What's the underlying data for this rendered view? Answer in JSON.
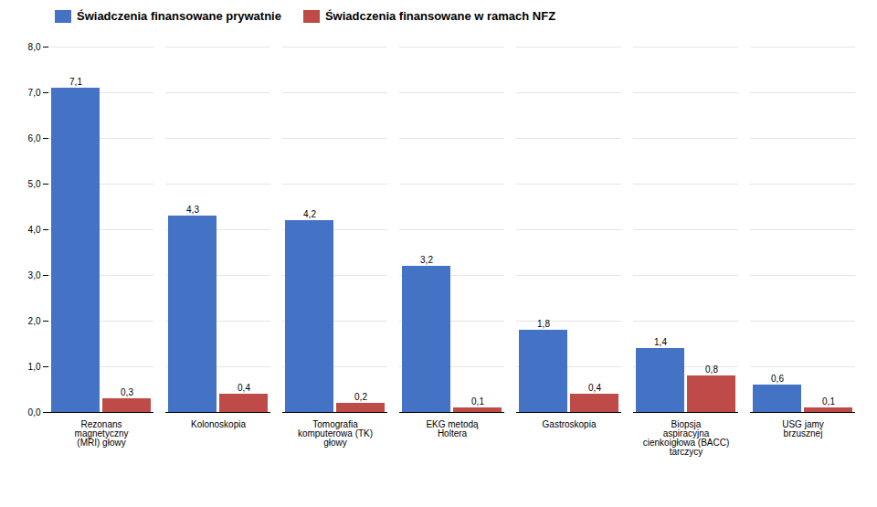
{
  "chart_data": {
    "type": "bar",
    "categories": [
      "Rezonans\nmagnetyczny\n(MRI) głowy",
      "Kolonoskopia",
      "Tomografia\nkomputerowa (TK)\ngłowy",
      "EKG metodą\nHoltera",
      "Gastroskopia",
      "Biopsja\naspiracyjna\ncienkoigłowa (BACC)\ntarczycy",
      "USG jamy\nbrzusznej"
    ],
    "series": [
      {
        "name": "Świadczenia finansowane prywatnie",
        "color": "#4472C4",
        "values": [
          7.1,
          4.3,
          4.2,
          3.2,
          1.8,
          1.4,
          0.6
        ],
        "value_labels": [
          "7,1",
          "4,3",
          "4,2",
          "3,2",
          "1,8",
          "1,4",
          "0,6"
        ]
      },
      {
        "name": "Świadczenia finansowane w ramach NFZ",
        "color": "#BE4B48",
        "values": [
          0.3,
          0.4,
          0.2,
          0.1,
          0.4,
          0.8,
          0.1
        ],
        "value_labels": [
          "0,3",
          "0,4",
          "0,2",
          "0,1",
          "0,4",
          "0,8",
          "0,1"
        ]
      }
    ],
    "ylim": [
      0,
      8.0
    ],
    "yticks": [
      {
        "value": 0.0,
        "label": "0,0"
      },
      {
        "value": 1.0,
        "label": "1,0"
      },
      {
        "value": 2.0,
        "label": "2,0"
      },
      {
        "value": 3.0,
        "label": "3,0"
      },
      {
        "value": 4.0,
        "label": "4,0"
      },
      {
        "value": 5.0,
        "label": "5,0"
      },
      {
        "value": 6.0,
        "label": "6,0"
      },
      {
        "value": 7.0,
        "label": "7,0"
      },
      {
        "value": 8.0,
        "label": "8,0"
      }
    ],
    "grid": true,
    "data_labels": true,
    "legend": "upper left"
  }
}
